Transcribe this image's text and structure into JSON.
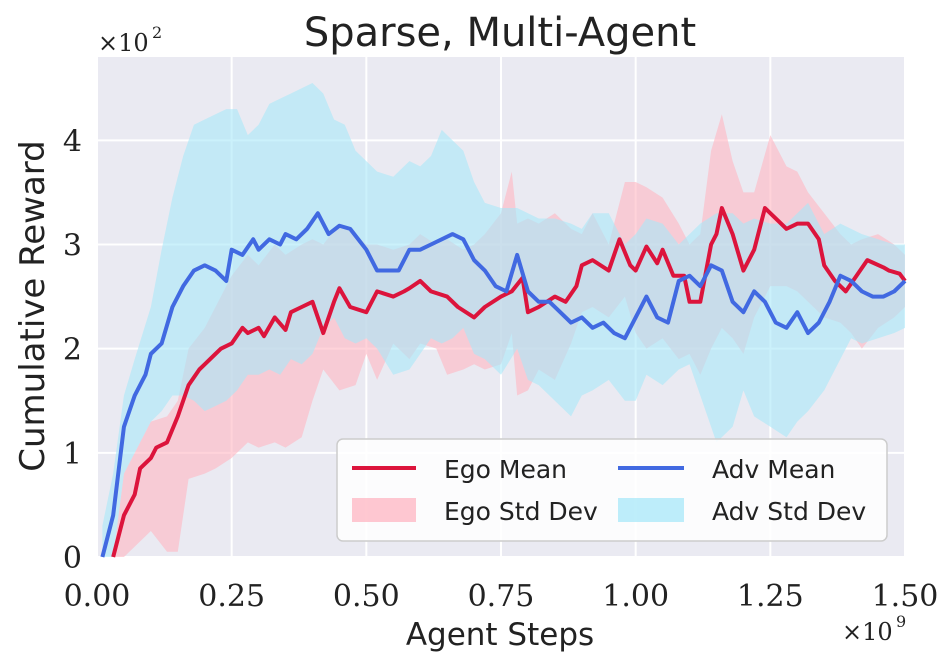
{
  "chart_data": {
    "type": "line",
    "title": "Sparse, Multi-Agent",
    "xlabel": "Agent Steps",
    "ylabel": "Cumulative Reward",
    "x_multiplier": "×10",
    "x_multiplier_exp": "9",
    "y_multiplier": "×10",
    "y_multiplier_exp": "2",
    "xlim": [
      0,
      1.5
    ],
    "ylim": [
      0,
      4.8
    ],
    "x_ticks": [
      0.0,
      0.25,
      0.5,
      0.75,
      1.0,
      1.25,
      1.5
    ],
    "x_tick_labels": [
      "0.00",
      "0.25",
      "0.50",
      "0.75",
      "1.00",
      "1.25",
      "1.50"
    ],
    "y_ticks": [
      0,
      1,
      2,
      3,
      4
    ],
    "y_tick_labels": [
      "0",
      "1",
      "2",
      "3",
      "4"
    ],
    "grid": true,
    "legend_position": "bottom-right",
    "legend": [
      {
        "key": "ego_mean",
        "label": "Ego Mean",
        "kind": "line"
      },
      {
        "key": "adv_mean",
        "label": "Adv Mean",
        "kind": "line"
      },
      {
        "key": "ego_std",
        "label": "Ego Std Dev",
        "kind": "band"
      },
      {
        "key": "adv_std",
        "label": "Adv Std Dev",
        "kind": "band"
      }
    ],
    "colors": {
      "ego_line": "#dc143c",
      "adv_line": "#4169e1",
      "ego_band": "#ffb6c1",
      "adv_band": "#a8e8f8",
      "plot_bg": "#eaeaf2",
      "grid": "#ffffff"
    },
    "series": [
      {
        "name": "Ego Mean",
        "x": [
          0.03,
          0.05,
          0.07,
          0.08,
          0.1,
          0.11,
          0.13,
          0.15,
          0.17,
          0.19,
          0.2,
          0.22,
          0.23,
          0.25,
          0.27,
          0.28,
          0.3,
          0.31,
          0.33,
          0.35,
          0.36,
          0.38,
          0.4,
          0.42,
          0.44,
          0.45,
          0.47,
          0.5,
          0.52,
          0.55,
          0.57,
          0.58,
          0.6,
          0.62,
          0.65,
          0.67,
          0.7,
          0.72,
          0.75,
          0.77,
          0.79,
          0.8,
          0.82,
          0.85,
          0.87,
          0.89,
          0.9,
          0.92,
          0.95,
          0.97,
          0.99,
          1.0,
          1.02,
          1.04,
          1.05,
          1.07,
          1.09,
          1.1,
          1.12,
          1.14,
          1.15,
          1.16,
          1.18,
          1.2,
          1.22,
          1.24,
          1.26,
          1.28,
          1.3,
          1.32,
          1.34,
          1.35,
          1.37,
          1.39,
          1.41,
          1.43,
          1.46,
          1.47,
          1.49,
          1.5
        ],
        "values": [
          0.0,
          0.4,
          0.6,
          0.85,
          0.95,
          1.05,
          1.1,
          1.35,
          1.65,
          1.8,
          1.85,
          1.95,
          2.0,
          2.05,
          2.2,
          2.15,
          2.2,
          2.12,
          2.3,
          2.18,
          2.35,
          2.4,
          2.45,
          2.15,
          2.45,
          2.58,
          2.4,
          2.35,
          2.55,
          2.5,
          2.55,
          2.58,
          2.65,
          2.55,
          2.5,
          2.4,
          2.3,
          2.4,
          2.5,
          2.55,
          2.68,
          2.35,
          2.4,
          2.5,
          2.45,
          2.6,
          2.8,
          2.85,
          2.75,
          3.05,
          2.8,
          2.75,
          2.98,
          2.82,
          2.95,
          2.7,
          2.7,
          2.45,
          2.45,
          3.0,
          3.1,
          3.35,
          3.1,
          2.75,
          2.95,
          3.35,
          3.25,
          3.15,
          3.2,
          3.2,
          3.05,
          2.8,
          2.65,
          2.55,
          2.7,
          2.85,
          2.78,
          2.75,
          2.72,
          2.65
        ]
      },
      {
        "name": "Adv Mean",
        "x": [
          0.01,
          0.03,
          0.05,
          0.07,
          0.09,
          0.1,
          0.12,
          0.14,
          0.16,
          0.18,
          0.2,
          0.22,
          0.24,
          0.25,
          0.27,
          0.29,
          0.3,
          0.32,
          0.34,
          0.35,
          0.37,
          0.39,
          0.41,
          0.43,
          0.45,
          0.47,
          0.5,
          0.52,
          0.54,
          0.56,
          0.58,
          0.6,
          0.62,
          0.64,
          0.66,
          0.68,
          0.7,
          0.72,
          0.74,
          0.76,
          0.78,
          0.8,
          0.82,
          0.84,
          0.86,
          0.88,
          0.9,
          0.92,
          0.94,
          0.96,
          0.98,
          1.0,
          1.02,
          1.04,
          1.06,
          1.08,
          1.1,
          1.12,
          1.14,
          1.16,
          1.18,
          1.2,
          1.22,
          1.24,
          1.26,
          1.28,
          1.3,
          1.32,
          1.34,
          1.36,
          1.38,
          1.4,
          1.42,
          1.44,
          1.46,
          1.48,
          1.5
        ],
        "values": [
          0.0,
          0.4,
          1.25,
          1.55,
          1.75,
          1.95,
          2.05,
          2.4,
          2.6,
          2.75,
          2.8,
          2.75,
          2.65,
          2.95,
          2.9,
          3.05,
          2.95,
          3.05,
          3.0,
          3.1,
          3.05,
          3.15,
          3.3,
          3.1,
          3.18,
          3.15,
          2.95,
          2.75,
          2.75,
          2.75,
          2.95,
          2.95,
          3.0,
          3.05,
          3.1,
          3.05,
          2.85,
          2.75,
          2.6,
          2.55,
          2.9,
          2.55,
          2.45,
          2.45,
          2.35,
          2.25,
          2.3,
          2.2,
          2.25,
          2.15,
          2.1,
          2.3,
          2.5,
          2.3,
          2.25,
          2.65,
          2.7,
          2.6,
          2.8,
          2.75,
          2.45,
          2.35,
          2.55,
          2.45,
          2.25,
          2.2,
          2.35,
          2.15,
          2.25,
          2.45,
          2.7,
          2.65,
          2.55,
          2.5,
          2.5,
          2.55,
          2.65
        ]
      }
    ],
    "bands": [
      {
        "name": "Ego Std Dev",
        "x": [
          0.03,
          0.05,
          0.07,
          0.1,
          0.13,
          0.15,
          0.17,
          0.2,
          0.22,
          0.25,
          0.28,
          0.3,
          0.33,
          0.35,
          0.38,
          0.4,
          0.42,
          0.45,
          0.48,
          0.5,
          0.52,
          0.55,
          0.58,
          0.6,
          0.63,
          0.65,
          0.68,
          0.7,
          0.72,
          0.75,
          0.77,
          0.78,
          0.8,
          0.82,
          0.85,
          0.88,
          0.9,
          0.92,
          0.95,
          0.98,
          1.0,
          1.02,
          1.05,
          1.08,
          1.1,
          1.12,
          1.14,
          1.16,
          1.18,
          1.2,
          1.22,
          1.25,
          1.28,
          1.3,
          1.32,
          1.35,
          1.38,
          1.4,
          1.42,
          1.45,
          1.48,
          1.5
        ],
        "upper": [
          0.0,
          0.8,
          1.0,
          1.3,
          1.35,
          1.5,
          2.0,
          2.2,
          2.4,
          2.7,
          2.9,
          2.8,
          3.0,
          2.9,
          3.0,
          3.05,
          3.0,
          3.2,
          3.1,
          3.0,
          3.0,
          2.95,
          3.0,
          3.1,
          3.0,
          3.05,
          2.95,
          3.0,
          3.1,
          3.3,
          3.7,
          3.2,
          3.25,
          3.2,
          3.3,
          3.15,
          3.1,
          3.3,
          3.0,
          3.6,
          3.6,
          3.55,
          3.45,
          3.2,
          3.0,
          3.1,
          3.9,
          4.25,
          3.8,
          3.5,
          3.5,
          4.05,
          3.75,
          3.7,
          3.5,
          3.3,
          3.1,
          3.0,
          3.05,
          3.1,
          3.0,
          2.9
        ],
        "lower": [
          0.0,
          0.0,
          0.1,
          0.25,
          0.05,
          0.05,
          0.75,
          0.8,
          0.85,
          0.95,
          1.1,
          1.05,
          1.1,
          1.05,
          1.15,
          1.5,
          1.8,
          1.6,
          1.65,
          1.95,
          1.7,
          2.05,
          1.9,
          2.05,
          2.0,
          1.75,
          1.8,
          1.85,
          1.8,
          1.85,
          2.15,
          1.55,
          1.6,
          1.8,
          1.7,
          2.05,
          2.35,
          2.4,
          2.3,
          2.5,
          2.15,
          2.0,
          2.1,
          1.9,
          1.95,
          1.75,
          2.0,
          2.2,
          2.1,
          1.95,
          2.3,
          2.6,
          2.6,
          2.55,
          2.45,
          2.3,
          2.25,
          2.15,
          2.0,
          2.2,
          2.3,
          2.4
        ]
      },
      {
        "name": "Adv Std Dev",
        "x": [
          0.01,
          0.03,
          0.05,
          0.07,
          0.1,
          0.12,
          0.14,
          0.16,
          0.18,
          0.2,
          0.22,
          0.24,
          0.26,
          0.28,
          0.3,
          0.32,
          0.34,
          0.36,
          0.38,
          0.4,
          0.42,
          0.44,
          0.46,
          0.48,
          0.5,
          0.52,
          0.55,
          0.58,
          0.6,
          0.62,
          0.64,
          0.66,
          0.68,
          0.7,
          0.72,
          0.75,
          0.78,
          0.8,
          0.82,
          0.85,
          0.88,
          0.9,
          0.92,
          0.95,
          0.98,
          1.0,
          1.02,
          1.05,
          1.08,
          1.1,
          1.12,
          1.15,
          1.18,
          1.2,
          1.22,
          1.25,
          1.28,
          1.3,
          1.32,
          1.35,
          1.38,
          1.4,
          1.42,
          1.45,
          1.48,
          1.5
        ],
        "upper": [
          0.3,
          0.8,
          1.55,
          1.9,
          2.4,
          2.95,
          3.45,
          3.85,
          4.15,
          4.2,
          4.25,
          4.3,
          4.3,
          4.05,
          4.15,
          4.35,
          4.4,
          4.45,
          4.5,
          4.55,
          4.45,
          4.2,
          4.15,
          3.9,
          3.8,
          3.7,
          3.65,
          3.8,
          3.75,
          3.85,
          4.1,
          4.0,
          3.9,
          3.6,
          3.4,
          3.35,
          3.35,
          3.3,
          3.25,
          3.25,
          3.2,
          3.15,
          3.3,
          3.3,
          3.0,
          3.1,
          3.25,
          3.2,
          3.0,
          3.1,
          3.2,
          3.3,
          3.3,
          3.2,
          3.25,
          3.2,
          3.2,
          3.3,
          3.4,
          3.1,
          3.2,
          3.15,
          3.1,
          3.05,
          3.0,
          3.0
        ],
        "lower": [
          0.0,
          0.0,
          0.8,
          1.0,
          1.3,
          1.4,
          1.55,
          1.55,
          1.5,
          1.4,
          1.45,
          1.5,
          1.6,
          1.75,
          1.75,
          1.8,
          1.75,
          1.9,
          1.85,
          1.95,
          2.2,
          2.3,
          2.1,
          2.05,
          2.1,
          2.0,
          1.75,
          1.8,
          1.95,
          2.1,
          2.05,
          2.1,
          2.2,
          1.95,
          1.9,
          1.75,
          2.0,
          1.7,
          1.65,
          1.5,
          1.35,
          1.55,
          1.6,
          1.7,
          1.5,
          1.5,
          1.75,
          1.65,
          1.8,
          1.85,
          1.55,
          1.1,
          1.25,
          1.6,
          1.35,
          1.25,
          1.15,
          1.3,
          1.4,
          1.6,
          1.9,
          2.1,
          2.05,
          2.1,
          2.15,
          2.2
        ]
      }
    ]
  }
}
